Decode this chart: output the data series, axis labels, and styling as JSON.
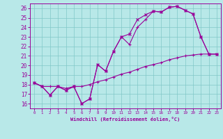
{
  "xlabel": "Windchill (Refroidissement éolien,°C)",
  "bg_color": "#b8e8e8",
  "line_color": "#990099",
  "grid_color": "#80c8c8",
  "ylim": [
    15.5,
    26.5
  ],
  "xlim": [
    -0.5,
    23.5
  ],
  "yticks": [
    16,
    17,
    18,
    19,
    20,
    21,
    22,
    23,
    24,
    25,
    26
  ],
  "xticks": [
    0,
    1,
    2,
    3,
    4,
    5,
    6,
    7,
    8,
    9,
    10,
    11,
    12,
    13,
    14,
    15,
    16,
    17,
    18,
    19,
    20,
    21,
    22,
    23
  ],
  "curve1_x": [
    0,
    1,
    2,
    3,
    4,
    5,
    6,
    7,
    8,
    9,
    10,
    11,
    12,
    13,
    14,
    15,
    16,
    17,
    18,
    19,
    20,
    21,
    22,
    23
  ],
  "curve1_y": [
    18.2,
    17.8,
    16.9,
    17.8,
    17.4,
    17.8,
    16.0,
    16.5,
    20.1,
    19.4,
    21.5,
    23.0,
    22.2,
    24.0,
    24.8,
    25.7,
    25.6,
    26.1,
    26.2,
    25.8,
    25.4,
    23.0,
    21.2,
    21.2
  ],
  "curve2_x": [
    0,
    1,
    2,
    3,
    4,
    5,
    6,
    7,
    8,
    9,
    10,
    11,
    12,
    13,
    14,
    15,
    16,
    17,
    18,
    19,
    20,
    21,
    22,
    23
  ],
  "curve2_y": [
    18.2,
    17.8,
    16.9,
    17.8,
    17.4,
    17.8,
    16.0,
    16.5,
    20.1,
    19.4,
    21.5,
    23.0,
    23.3,
    24.8,
    25.3,
    25.7,
    25.6,
    26.1,
    26.2,
    25.8,
    25.4,
    23.0,
    21.2,
    21.2
  ],
  "curve3_x": [
    0,
    1,
    2,
    3,
    4,
    5,
    6,
    7,
    8,
    9,
    10,
    11,
    12,
    13,
    14,
    15,
    16,
    17,
    18,
    19,
    20,
    21,
    22,
    23
  ],
  "curve3_y": [
    18.2,
    17.8,
    17.8,
    17.8,
    17.6,
    17.8,
    17.8,
    18.0,
    18.3,
    18.5,
    18.8,
    19.1,
    19.3,
    19.6,
    19.9,
    20.1,
    20.3,
    20.6,
    20.8,
    21.0,
    21.1,
    21.2,
    21.2,
    21.2
  ],
  "xlabel_fontsize": 5,
  "ytick_fontsize": 5.5,
  "xtick_fontsize": 4.2
}
